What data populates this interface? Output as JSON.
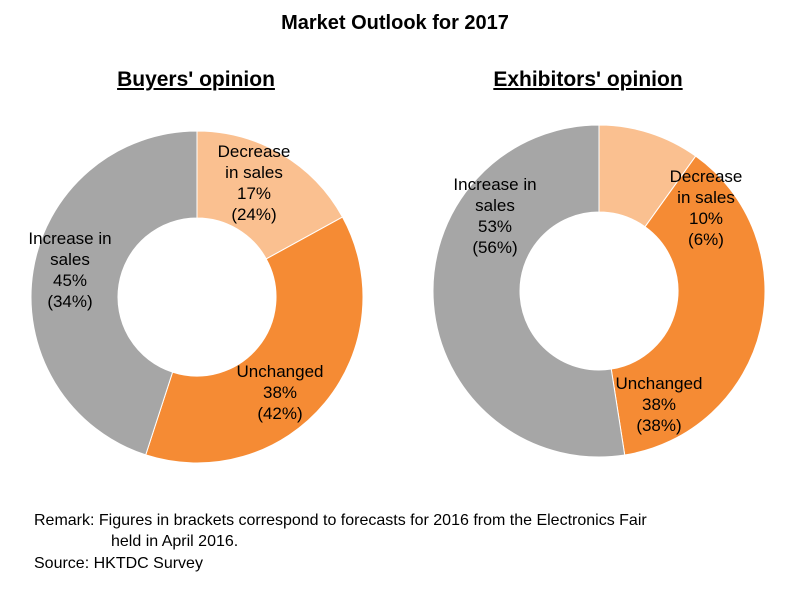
{
  "title": "Market Outlook for 2017",
  "colors": {
    "increase": "#A6A6A6",
    "decrease": "#FAC090",
    "unchanged": "#F58B34"
  },
  "chart_data": [
    {
      "type": "pie",
      "donut": true,
      "title": "Buyers' opinion",
      "categories": [
        "Decrease in sales",
        "Unchanged",
        "Increase in sales"
      ],
      "values": [
        17,
        38,
        45
      ],
      "forecast_2016": [
        24,
        42,
        34
      ],
      "labels": [
        [
          "Decrease",
          "in sales",
          "17%",
          "(24%)"
        ],
        [
          "Unchanged",
          "38%",
          "(42%)"
        ],
        [
          "Increase in",
          "sales",
          "45%",
          "(34%)"
        ]
      ],
      "colors": [
        "#FAC090",
        "#F58B34",
        "#A6A6A6"
      ]
    },
    {
      "type": "pie",
      "donut": true,
      "title": "Exhibitors' opinion",
      "categories": [
        "Decrease in sales",
        "Unchanged",
        "Increase in sales"
      ],
      "values": [
        10,
        38,
        53
      ],
      "forecast_2016": [
        6,
        38,
        56
      ],
      "labels": [
        [
          "Decrease",
          "in sales",
          "10%",
          "(6%)"
        ],
        [
          "Unchanged",
          "38%",
          "(38%)"
        ],
        [
          "Increase in",
          "sales",
          "53%",
          "(56%)"
        ]
      ],
      "colors": [
        "#FAC090",
        "#F58B34",
        "#A6A6A6"
      ]
    }
  ],
  "remark": {
    "head": "Remark:",
    "line1": "Figures in brackets correspond to forecasts for 2016 from the Electronics Fair",
    "line2": "held in April 2016."
  },
  "source": "Source: HKTDC Survey"
}
